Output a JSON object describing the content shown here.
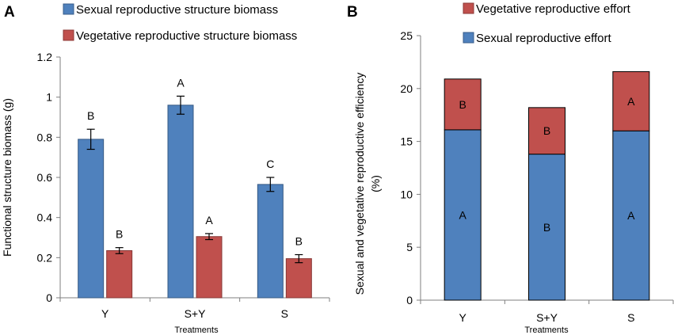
{
  "chart_data": [
    {
      "type": "bar",
      "panel": "A",
      "categories": [
        "Y",
        "S+Y",
        "S"
      ],
      "series": [
        {
          "name": "Sexual reproductive structure biomass",
          "color": "#4f81bd",
          "values": [
            0.79,
            0.96,
            0.565
          ],
          "errors": [
            0.05,
            0.045,
            0.035
          ],
          "letters": [
            "B",
            "A",
            "C"
          ]
        },
        {
          "name": "Vegetative reproductive structure biomass",
          "color": "#c0504d",
          "values": [
            0.235,
            0.305,
            0.195
          ],
          "errors": [
            0.015,
            0.015,
            0.02
          ],
          "letters": [
            "B",
            "A",
            "B"
          ]
        }
      ],
      "xlabel": "Treatments",
      "ylabel": "Functional structure biomass (g)",
      "ylim": [
        0,
        1.2
      ],
      "yticks": [
        "0",
        "0.2",
        "0.4",
        "0.6",
        "0.8",
        "1",
        "1.2"
      ],
      "grid": false,
      "legend": "top-left"
    },
    {
      "type": "bar",
      "stacked": true,
      "panel": "B",
      "categories": [
        "Y",
        "S+Y",
        "S"
      ],
      "series": [
        {
          "name": "Sexual reproductive effort",
          "color": "#4f81bd",
          "values": [
            16.1,
            13.8,
            16.0
          ],
          "letters": [
            "A",
            "B",
            "A"
          ]
        },
        {
          "name": "Vegetative reproductive  effort",
          "color": "#c0504d",
          "values": [
            4.8,
            4.4,
            5.6
          ],
          "letters": [
            "B",
            "B",
            "A"
          ]
        }
      ],
      "xlabel": "Treatments",
      "ylabel_lines": [
        "Sexual and vegetative reproductive efficiency",
        "(%)"
      ],
      "ylim": [
        0,
        25
      ],
      "yticks": [
        "0",
        "5",
        "10",
        "15",
        "20",
        "25"
      ],
      "grid": false,
      "legend": "top"
    }
  ]
}
